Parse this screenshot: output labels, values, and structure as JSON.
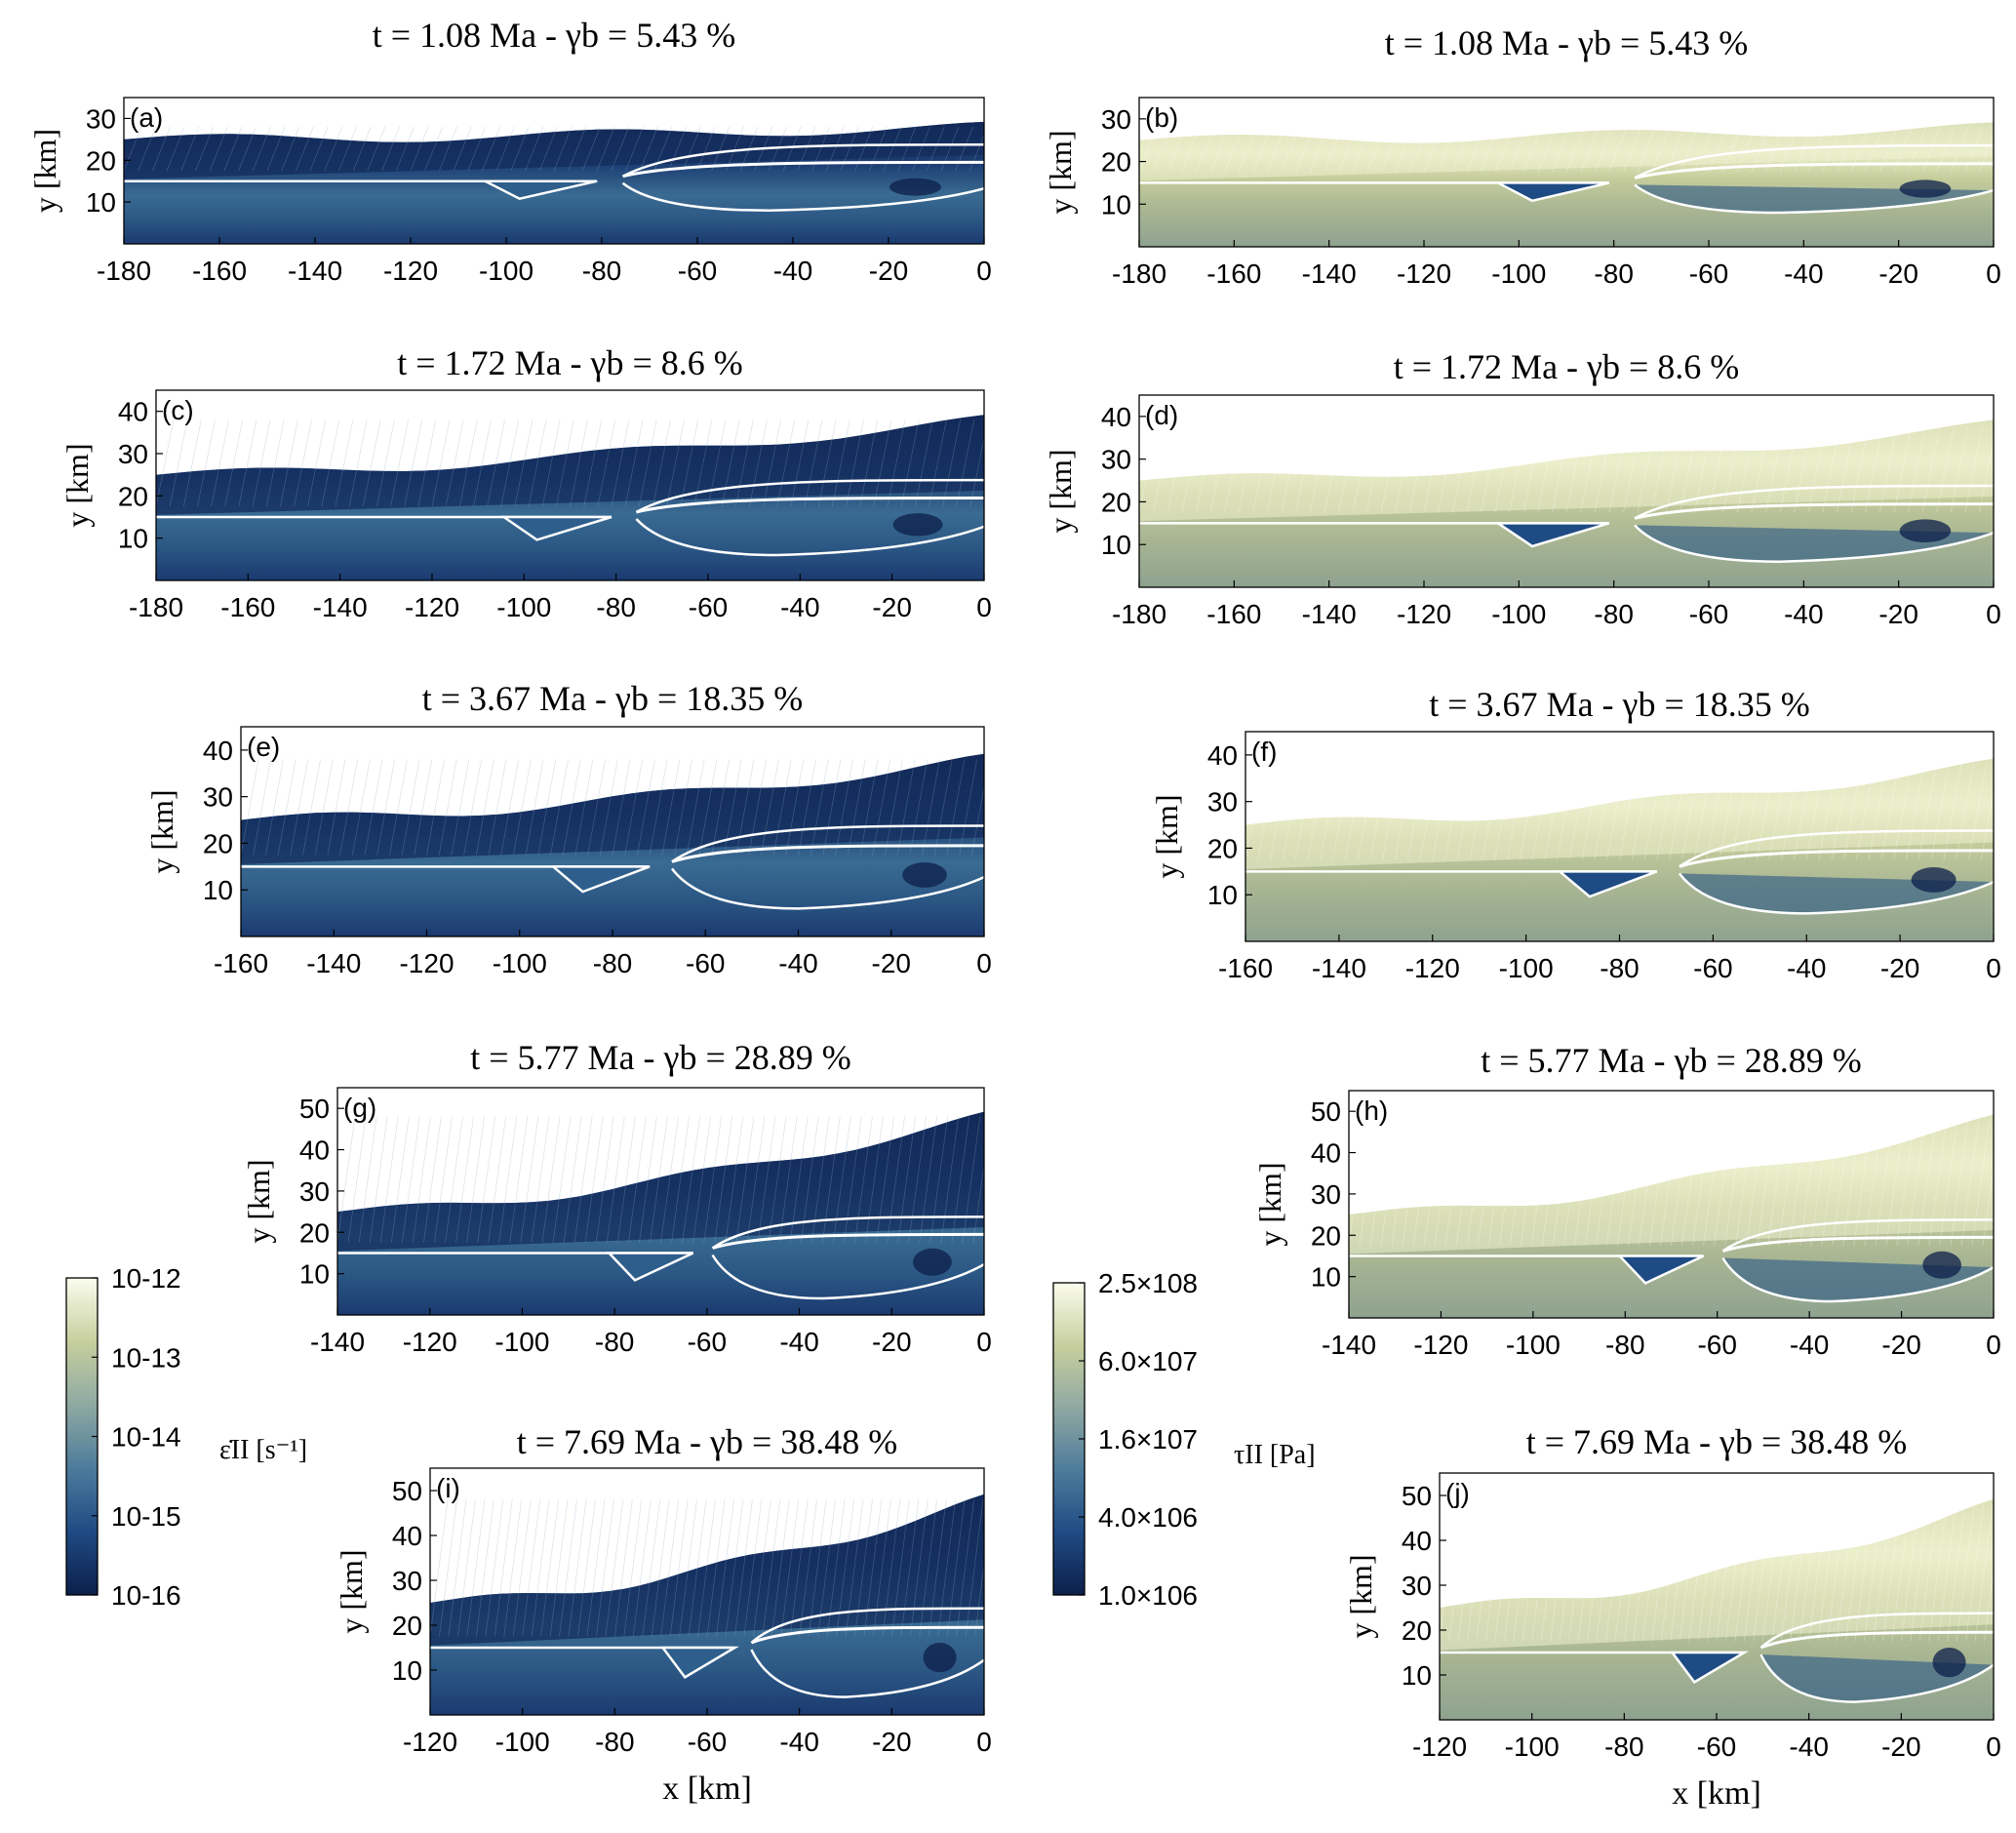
{
  "colors": {
    "cmap": [
      "#0c1f4a",
      "#1f4b84",
      "#4d7b9b",
      "#8fa9a2",
      "#c8cf9e",
      "#fbfcee"
    ],
    "boundary": "#ffffff",
    "frame": "#000000",
    "background": "#ffffff"
  },
  "panels": [
    {
      "id": "a",
      "label": "(a)",
      "field": "strain_rate",
      "title": "t = 1.08 Ma - γb = 5.43 %",
      "xticks": [
        "-180",
        "-160",
        "-140",
        "-120",
        "-100",
        "-80",
        "-60",
        "-40",
        "-20",
        "0"
      ],
      "yticks": [
        "10",
        "20",
        "30"
      ],
      "ylabel": "y [km]",
      "xlabel": ""
    },
    {
      "id": "b",
      "label": "(b)",
      "field": "stress",
      "title": "t = 1.08 Ma - γb = 5.43 %",
      "xticks": [
        "-180",
        "-160",
        "-140",
        "-120",
        "-100",
        "-80",
        "-60",
        "-40",
        "-20",
        "0"
      ],
      "yticks": [
        "10",
        "20",
        "30"
      ],
      "ylabel": "y [km]",
      "xlabel": ""
    },
    {
      "id": "c",
      "label": "(c)",
      "field": "strain_rate",
      "title": "t = 1.72 Ma - γb = 8.6 %",
      "xticks": [
        "-180",
        "-160",
        "-140",
        "-120",
        "-100",
        "-80",
        "-60",
        "-40",
        "-20",
        "0"
      ],
      "yticks": [
        "10",
        "20",
        "30",
        "40"
      ],
      "ylabel": "y [km]",
      "xlabel": ""
    },
    {
      "id": "d",
      "label": "(d)",
      "field": "stress",
      "title": "t = 1.72 Ma - γb = 8.6 %",
      "xticks": [
        "-180",
        "-160",
        "-140",
        "-120",
        "-100",
        "-80",
        "-60",
        "-40",
        "-20",
        "0"
      ],
      "yticks": [
        "10",
        "20",
        "30",
        "40"
      ],
      "ylabel": "y [km]",
      "xlabel": ""
    },
    {
      "id": "e",
      "label": "(e)",
      "field": "strain_rate",
      "title": "t = 3.67 Ma - γb = 18.35 %",
      "xticks": [
        "-160",
        "-140",
        "-120",
        "-100",
        "-80",
        "-60",
        "-40",
        "-20",
        "0"
      ],
      "yticks": [
        "10",
        "20",
        "30",
        "40"
      ],
      "ylabel": "y [km]",
      "xlabel": ""
    },
    {
      "id": "f",
      "label": "(f)",
      "field": "stress",
      "title": "t = 3.67 Ma - γb = 18.35 %",
      "xticks": [
        "-160",
        "-140",
        "-120",
        "-100",
        "-80",
        "-60",
        "-40",
        "-20",
        "0"
      ],
      "yticks": [
        "10",
        "20",
        "30",
        "40"
      ],
      "ylabel": "y [km]",
      "xlabel": ""
    },
    {
      "id": "g",
      "label": "(g)",
      "field": "strain_rate",
      "title": "t = 5.77 Ma - γb = 28.89 %",
      "xticks": [
        "-140",
        "-120",
        "-100",
        "-80",
        "-60",
        "-40",
        "-20",
        "0"
      ],
      "yticks": [
        "10",
        "20",
        "30",
        "40",
        "50"
      ],
      "ylabel": "y [km]",
      "xlabel": ""
    },
    {
      "id": "h",
      "label": "(h)",
      "field": "stress",
      "title": "t = 5.77 Ma - γb = 28.89 %",
      "xticks": [
        "-140",
        "-120",
        "-100",
        "-80",
        "-60",
        "-40",
        "-20",
        "0"
      ],
      "yticks": [
        "10",
        "20",
        "30",
        "40",
        "50"
      ],
      "ylabel": "y [km]",
      "xlabel": ""
    },
    {
      "id": "i",
      "label": "(i)",
      "field": "strain_rate",
      "title": "t = 7.69 Ma - γb = 38.48 %",
      "xticks": [
        "-120",
        "-100",
        "-80",
        "-60",
        "-40",
        "-20",
        "0"
      ],
      "yticks": [
        "10",
        "20",
        "30",
        "40",
        "50"
      ],
      "ylabel": "y [km]",
      "xlabel": "x [km]"
    },
    {
      "id": "j",
      "label": "(j)",
      "field": "stress",
      "title": "t = 7.69 Ma - γb = 38.48 %",
      "xticks": [
        "-120",
        "-100",
        "-80",
        "-60",
        "-40",
        "-20",
        "0"
      ],
      "yticks": [
        "10",
        "20",
        "30",
        "40",
        "50"
      ],
      "ylabel": "y [km]",
      "xlabel": "x [km]"
    }
  ],
  "colorbars": [
    {
      "id": "strain_rate",
      "label": "ε̇II [s⁻¹]",
      "ticks": [
        "10-12",
        "10-13",
        "10-14",
        "10-15",
        "10-16"
      ]
    },
    {
      "id": "stress",
      "label": "τII [Pa]",
      "ticks": [
        "2.5×108",
        "6.0×107",
        "1.6×107",
        "4.0×106",
        "1.0×106"
      ]
    }
  ]
}
